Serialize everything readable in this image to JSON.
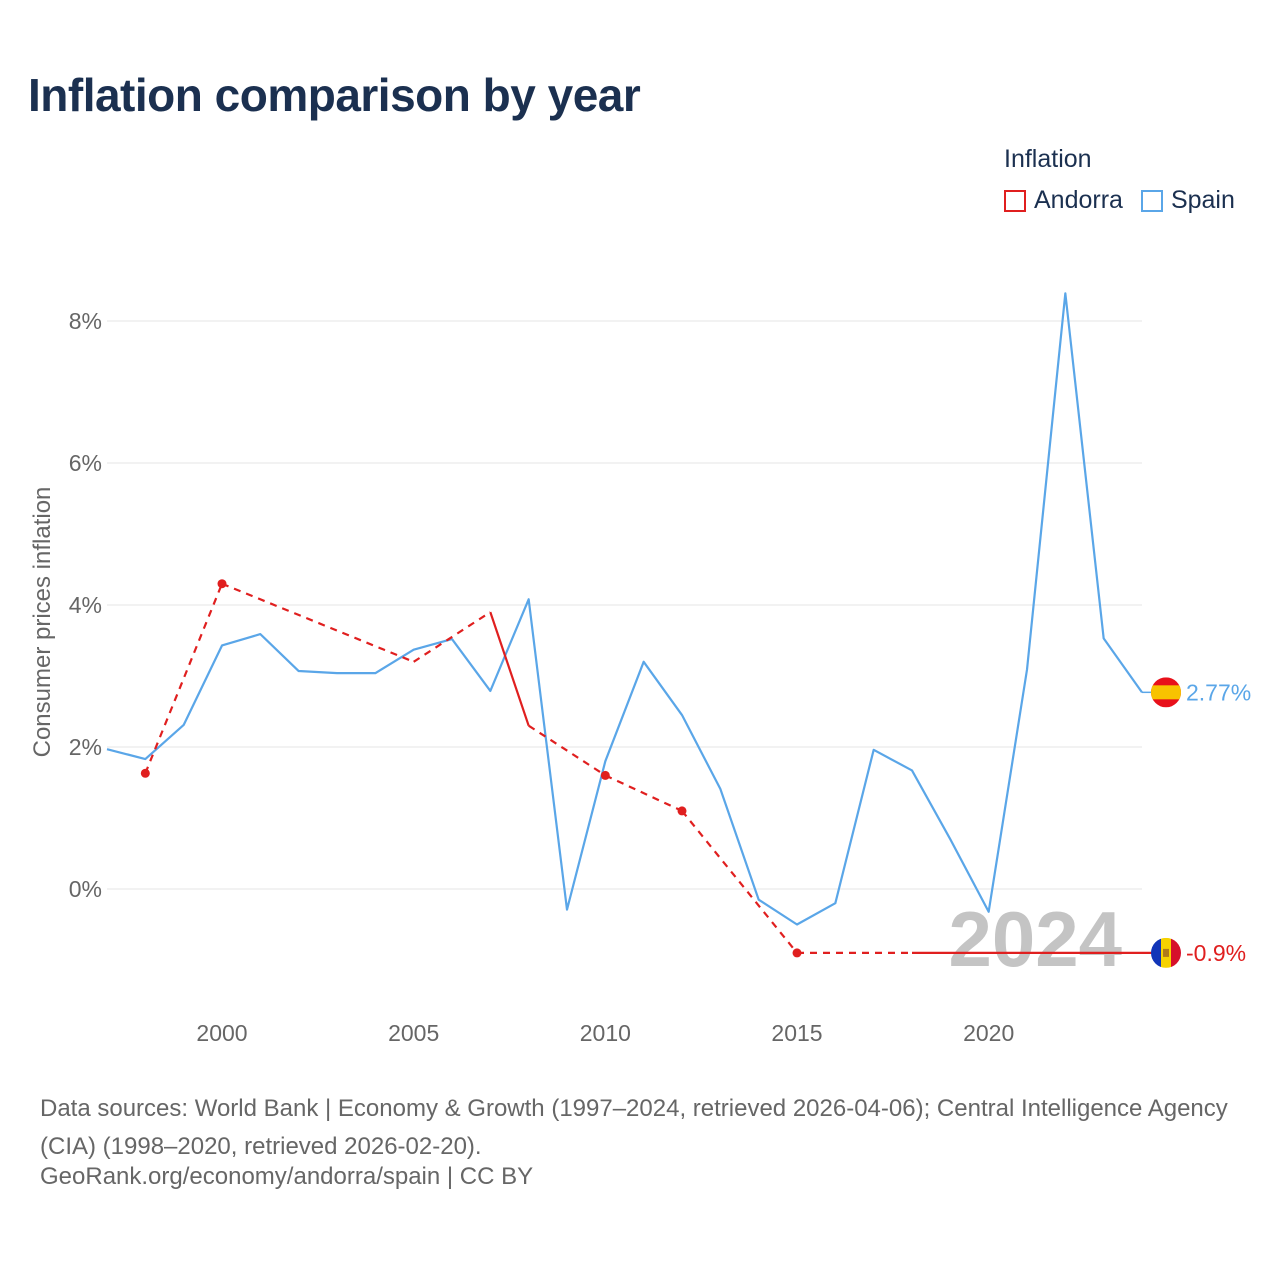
{
  "title": "Inflation comparison by year",
  "legend": {
    "title": "Inflation",
    "items": [
      {
        "label": "Andorra",
        "color": "#e01f1f"
      },
      {
        "label": "Spain",
        "color": "#5aa6e8"
      }
    ]
  },
  "chart_data": {
    "type": "line",
    "title": "Inflation comparison by year",
    "xlabel": "",
    "ylabel": "Consumer prices inflation",
    "xlim": [
      1997,
      2024
    ],
    "ylim": [
      -1.5,
      8.5
    ],
    "x_ticks": [
      2000,
      2005,
      2010,
      2015,
      2020
    ],
    "y_ticks": [
      0,
      2,
      4,
      6,
      8
    ],
    "y_tick_labels": [
      "0%",
      "2%",
      "4%",
      "6%",
      "8%"
    ],
    "grid": true,
    "current_year": "2024",
    "series": [
      {
        "name": "Spain",
        "color": "#5aa6e8",
        "x": [
          1997,
          1998,
          1999,
          2000,
          2001,
          2002,
          2003,
          2004,
          2005,
          2006,
          2007,
          2008,
          2009,
          2010,
          2011,
          2012,
          2013,
          2014,
          2015,
          2016,
          2017,
          2018,
          2019,
          2020,
          2021,
          2022,
          2023,
          2024
        ],
        "values": [
          1.97,
          1.83,
          2.31,
          3.43,
          3.59,
          3.07,
          3.04,
          3.04,
          3.37,
          3.52,
          2.79,
          4.08,
          -0.29,
          1.8,
          3.2,
          2.45,
          1.41,
          -0.15,
          -0.5,
          -0.2,
          1.96,
          1.67,
          0.7,
          -0.32,
          3.09,
          8.39,
          3.53,
          2.77
        ],
        "end_label": "2.77%"
      },
      {
        "name": "Andorra",
        "color": "#e01f1f",
        "x": [
          1998,
          2000,
          2005,
          2007,
          2008,
          2010,
          2012,
          2015,
          2018,
          2024
        ],
        "values": [
          1.63,
          4.3,
          3.2,
          3.9,
          2.3,
          1.6,
          1.1,
          -0.9,
          -0.9,
          -0.9
        ],
        "markers_at": [
          1998,
          2000,
          2010,
          2012,
          2015
        ],
        "end_label": "-0.9%"
      }
    ]
  },
  "footer": {
    "sources": "Data sources: World Bank | Economy & Growth (1997–2024, retrieved 2026-04-06); Central Intelligence Agency (CIA) (1998–2020, retrieved 2026-02-20).",
    "credit": "GeoRank.org/economy/andorra/spain | CC BY"
  }
}
